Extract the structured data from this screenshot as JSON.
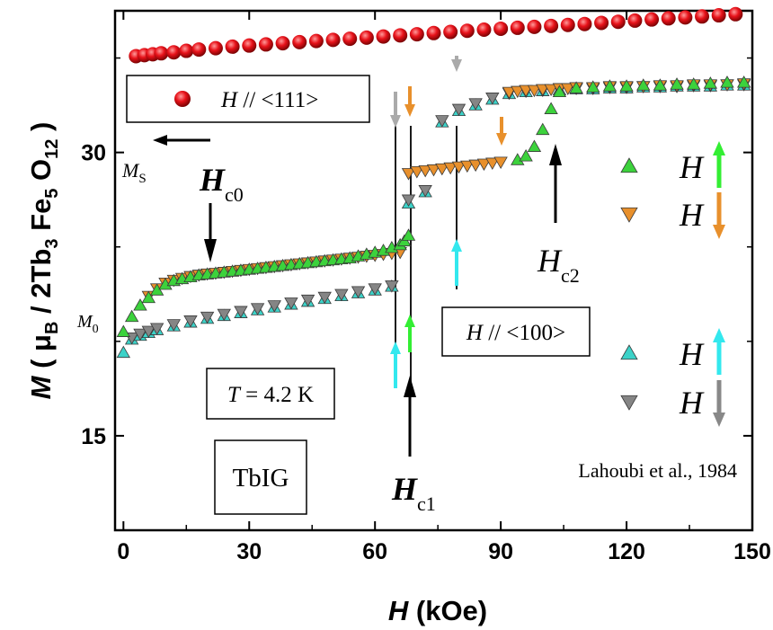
{
  "chart_data": {
    "type": "scatter",
    "title": "",
    "xlabel": {
      "var": "H",
      "rest": " (kOe)"
    },
    "ylabel": {
      "var": "M",
      "open": " ( μ",
      "sub1": "B",
      "mid": " / 2Tb",
      "sub2": "3",
      "fe": " Fe",
      "sub3": "5",
      "o": " O",
      "sub4": "12",
      "close": " )"
    },
    "xlim": [
      -2,
      150
    ],
    "ylim": [
      10,
      37.5
    ],
    "xticks": [
      "0",
      "30",
      "60",
      "90",
      "120",
      "150"
    ],
    "yticks": [
      "15",
      "30"
    ],
    "grid": false,
    "series": [
      {
        "name": "H // <111>",
        "marker": "circle",
        "color": "#e8121a",
        "x": [
          3,
          5,
          7,
          9,
          12,
          15,
          18,
          22,
          26,
          30,
          34,
          38,
          42,
          46,
          50,
          54,
          58,
          62,
          66,
          70,
          74,
          78,
          82,
          86,
          90,
          94,
          98,
          102,
          106,
          110,
          114,
          118,
          122,
          126,
          130,
          134,
          138,
          142,
          146
        ],
        "y": [
          35.1,
          35.15,
          35.2,
          35.25,
          35.3,
          35.38,
          35.45,
          35.52,
          35.6,
          35.66,
          35.72,
          35.78,
          35.84,
          35.9,
          35.96,
          36.02,
          36.08,
          36.14,
          36.2,
          36.26,
          36.32,
          36.38,
          36.44,
          36.5,
          36.55,
          36.6,
          36.65,
          36.7,
          36.75,
          36.8,
          36.86,
          36.92,
          36.98,
          37.04,
          37.1,
          37.15,
          37.2,
          37.26,
          37.32
        ]
      },
      {
        "name": "H ↑ (green)",
        "marker": "triangle-up",
        "color": "#3cd23c",
        "x": [
          0,
          2,
          4,
          6,
          8,
          10,
          12,
          14,
          16,
          18,
          20,
          22,
          24,
          26,
          28,
          30,
          32,
          34,
          36,
          38,
          40,
          42,
          44,
          46,
          48,
          50,
          52,
          54,
          56,
          58,
          60,
          62,
          64,
          66,
          67,
          68,
          94,
          96,
          98,
          100,
          102,
          104,
          108,
          112,
          116,
          120,
          124,
          128,
          132,
          136,
          140,
          144,
          148
        ],
        "y": [
          20.5,
          21.3,
          21.9,
          22.3,
          22.7,
          23.0,
          23.2,
          23.3,
          23.4,
          23.5,
          23.55,
          23.6,
          23.65,
          23.7,
          23.75,
          23.8,
          23.85,
          23.9,
          23.95,
          24.0,
          24.05,
          24.1,
          24.15,
          24.2,
          24.25,
          24.3,
          24.35,
          24.4,
          24.5,
          24.6,
          24.7,
          24.8,
          24.95,
          25.1,
          25.3,
          25.6,
          29.6,
          29.8,
          30.3,
          31.2,
          32.3,
          33.2,
          33.4,
          33.45,
          33.5,
          33.5,
          33.55,
          33.55,
          33.6,
          33.6,
          33.65,
          33.7,
          33.7
        ]
      },
      {
        "name": "H ↓ (orange)",
        "marker": "triangle-down",
        "color": "#e8902c",
        "x": [
          6,
          8,
          10,
          12,
          14,
          16,
          18,
          20,
          22,
          24,
          26,
          28,
          30,
          32,
          34,
          36,
          38,
          40,
          42,
          44,
          46,
          48,
          50,
          52,
          54,
          56,
          58,
          60,
          62,
          64,
          66,
          68,
          70,
          72,
          74,
          76,
          78,
          80,
          82,
          84,
          86,
          88,
          90,
          92,
          94,
          96,
          98,
          100,
          102,
          104,
          106,
          108,
          112,
          116,
          120,
          124,
          128,
          132,
          136,
          140,
          144,
          148
        ],
        "y": [
          22.4,
          22.8,
          23.1,
          23.25,
          23.35,
          23.45,
          23.52,
          23.58,
          23.62,
          23.67,
          23.72,
          23.77,
          23.82,
          23.87,
          23.92,
          23.97,
          24.02,
          24.07,
          24.12,
          24.17,
          24.22,
          24.27,
          24.32,
          24.37,
          24.42,
          24.47,
          24.52,
          24.57,
          24.62,
          24.67,
          24.72,
          28.9,
          29.0,
          29.05,
          29.1,
          29.15,
          29.2,
          29.25,
          29.3,
          29.35,
          29.4,
          29.45,
          29.5,
          33.2,
          33.25,
          33.3,
          33.3,
          33.35,
          33.35,
          33.4,
          33.4,
          33.45,
          33.45,
          33.5,
          33.5,
          33.5,
          33.55,
          33.55,
          33.6,
          33.6,
          33.6,
          33.65
        ]
      },
      {
        "name": "H ↑ (cyan)",
        "marker": "triangle-up",
        "color": "#3cd2c8",
        "x": [
          0,
          2,
          4,
          6,
          8,
          12,
          16,
          20,
          24,
          28,
          32,
          36,
          40,
          44,
          48,
          52,
          56,
          60,
          64,
          68,
          72,
          76,
          80,
          84,
          88,
          92,
          96,
          100,
          104,
          108,
          112,
          116,
          120,
          124,
          128,
          132,
          136,
          140,
          144,
          148
        ],
        "y": [
          19.4,
          20.1,
          20.3,
          20.45,
          20.6,
          20.8,
          21.0,
          21.2,
          21.35,
          21.5,
          21.65,
          21.8,
          21.95,
          22.1,
          22.25,
          22.4,
          22.55,
          22.7,
          22.9,
          27.3,
          27.9,
          31.6,
          32.2,
          32.5,
          32.8,
          33.1,
          33.2,
          33.25,
          33.3,
          33.35,
          33.35,
          33.4,
          33.4,
          33.45,
          33.45,
          33.5,
          33.5,
          33.5,
          33.55,
          33.55
        ]
      },
      {
        "name": "H ↓ (gray)",
        "marker": "triangle-down",
        "color": "#858585",
        "x": [
          2,
          4,
          6,
          8,
          12,
          16,
          20,
          24,
          28,
          32,
          36,
          40,
          44,
          48,
          52,
          56,
          60,
          64,
          68,
          72,
          76,
          80,
          84,
          88,
          92,
          96,
          100,
          104,
          108,
          112,
          116,
          120,
          124,
          128,
          132,
          136,
          140,
          144,
          148
        ],
        "y": [
          20.2,
          20.4,
          20.55,
          20.7,
          20.9,
          21.1,
          21.3,
          21.45,
          21.6,
          21.75,
          21.9,
          22.05,
          22.2,
          22.35,
          22.5,
          22.65,
          22.8,
          22.95,
          27.5,
          28.0,
          31.7,
          32.3,
          32.6,
          32.9,
          33.15,
          33.25,
          33.3,
          33.35,
          33.4,
          33.4,
          33.45,
          33.45,
          33.5,
          33.5,
          33.5,
          33.55,
          33.55,
          33.6,
          33.6
        ]
      }
    ],
    "legend": {
      "placement": "right",
      "entries": [
        {
          "label": "H",
          "marker": "triangle-up",
          "color": "#3cd23c",
          "arrow": "up",
          "arrow_color": "#33ee33"
        },
        {
          "label": "H",
          "marker": "triangle-down",
          "color": "#e8902c",
          "arrow": "down",
          "arrow_color": "#e8902c"
        },
        {
          "label": "H",
          "marker": "triangle-up",
          "color": "#3cd2c8",
          "arrow": "up",
          "arrow_color": "#33e8ee"
        },
        {
          "label": "H",
          "marker": "triangle-down",
          "color": "#858585",
          "arrow": "down",
          "arrow_color": "#888888"
        }
      ]
    },
    "annotations": {
      "box_111": {
        "var": "H",
        "text": " // <111>"
      },
      "box_100": {
        "var": "H",
        "text": " // <100>"
      },
      "temperature": {
        "var": "T",
        "text": " = 4.2 K"
      },
      "sample": "TbIG",
      "credit": "Lahoubi et al., 1984",
      "ms": {
        "main": "M",
        "sub": "S"
      },
      "m0": {
        "main": "M",
        "sub": "0"
      },
      "hc0": {
        "main": "H",
        "sub": "c0"
      },
      "hc1": {
        "main": "H",
        "sub": "c1"
      },
      "hc2": {
        "main": "H",
        "sub": "c2"
      }
    }
  }
}
